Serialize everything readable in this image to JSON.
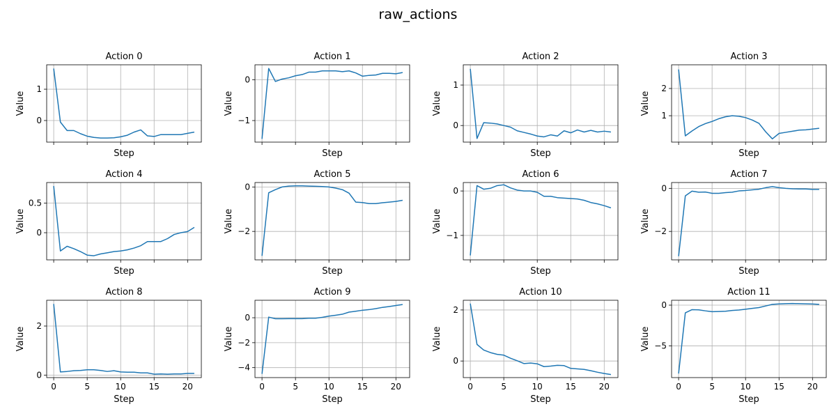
{
  "figure_title": "raw_actions",
  "chart_data": [
    {
      "type": "line",
      "title": "Action 0",
      "xlabel": "Step",
      "ylabel": "Value",
      "xlim": [
        -1.05,
        22.05
      ],
      "ylim": [
        -0.69,
        1.78
      ],
      "xticks": [
        0,
        5,
        10,
        15,
        20
      ],
      "yticks": [
        0,
        1
      ],
      "grid": true,
      "x": [
        0,
        1,
        2,
        3,
        4,
        5,
        6,
        7,
        8,
        9,
        10,
        11,
        12,
        13,
        14,
        15,
        16,
        17,
        18,
        19,
        20,
        21
      ],
      "values": [
        1.66,
        -0.05,
        -0.32,
        -0.32,
        -0.42,
        -0.5,
        -0.54,
        -0.56,
        -0.56,
        -0.55,
        -0.52,
        -0.47,
        -0.37,
        -0.3,
        -0.49,
        -0.51,
        -0.45,
        -0.45,
        -0.45,
        -0.45,
        -0.41,
        -0.37
      ]
    },
    {
      "type": "line",
      "title": "Action 1",
      "xlabel": "Step",
      "ylabel": "Value",
      "xlim": [
        -1.05,
        22.05
      ],
      "ylim": [
        -1.53,
        0.37
      ],
      "xticks": [
        0,
        5,
        10,
        15,
        20
      ],
      "yticks": [
        -1,
        0
      ],
      "grid": true,
      "x": [
        0,
        1,
        2,
        3,
        4,
        5,
        6,
        7,
        8,
        9,
        10,
        11,
        12,
        13,
        14,
        15,
        16,
        17,
        18,
        19,
        20,
        21
      ],
      "values": [
        -1.45,
        0.28,
        -0.04,
        0.02,
        0.05,
        0.1,
        0.13,
        0.19,
        0.19,
        0.22,
        0.22,
        0.22,
        0.2,
        0.22,
        0.17,
        0.09,
        0.11,
        0.12,
        0.16,
        0.16,
        0.15,
        0.18
      ]
    },
    {
      "type": "line",
      "title": "Action 2",
      "xlabel": "Step",
      "ylabel": "Value",
      "xlim": [
        -1.05,
        22.05
      ],
      "ylim": [
        -0.41,
        1.5
      ],
      "xticks": [
        0,
        5,
        10,
        15,
        20
      ],
      "yticks": [
        0,
        1
      ],
      "grid": true,
      "x": [
        0,
        1,
        2,
        3,
        4,
        5,
        6,
        7,
        8,
        9,
        10,
        11,
        12,
        13,
        14,
        15,
        16,
        17,
        18,
        19,
        20,
        21
      ],
      "values": [
        1.4,
        -0.32,
        0.07,
        0.06,
        0.04,
        0.0,
        -0.04,
        -0.13,
        -0.17,
        -0.21,
        -0.26,
        -0.28,
        -0.23,
        -0.26,
        -0.13,
        -0.18,
        -0.11,
        -0.16,
        -0.12,
        -0.16,
        -0.14,
        -0.16
      ]
    },
    {
      "type": "line",
      "title": "Action 3",
      "xlabel": "Step",
      "ylabel": "Value",
      "xlim": [
        -1.05,
        22.05
      ],
      "ylim": [
        0.03,
        2.87
      ],
      "xticks": [
        0,
        5,
        10,
        15,
        20
      ],
      "yticks": [
        1,
        2
      ],
      "grid": true,
      "x": [
        0,
        1,
        2,
        3,
        4,
        5,
        6,
        7,
        8,
        9,
        10,
        11,
        12,
        13,
        14,
        15,
        16,
        17,
        18,
        19,
        20,
        21
      ],
      "values": [
        2.7,
        0.26,
        0.44,
        0.6,
        0.71,
        0.79,
        0.89,
        0.96,
        1.0,
        0.98,
        0.93,
        0.84,
        0.72,
        0.41,
        0.15,
        0.35,
        0.39,
        0.43,
        0.47,
        0.48,
        0.51,
        0.54
      ]
    },
    {
      "type": "line",
      "title": "Action 4",
      "xlabel": "Step",
      "ylabel": "Value",
      "xlim": [
        -1.05,
        22.05
      ],
      "ylim": [
        -0.46,
        0.85
      ],
      "xticks": [
        0,
        5,
        10,
        15,
        20
      ],
      "yticks": [
        0,
        0.5
      ],
      "grid": true,
      "x": [
        0,
        1,
        2,
        3,
        4,
        5,
        6,
        7,
        8,
        9,
        10,
        11,
        12,
        13,
        14,
        15,
        16,
        17,
        18,
        19,
        20,
        21
      ],
      "values": [
        0.79,
        -0.31,
        -0.23,
        -0.27,
        -0.32,
        -0.38,
        -0.39,
        -0.36,
        -0.34,
        -0.32,
        -0.31,
        -0.29,
        -0.26,
        -0.22,
        -0.15,
        -0.15,
        -0.15,
        -0.1,
        -0.03,
        0.0,
        0.02,
        0.09
      ]
    },
    {
      "type": "line",
      "title": "Action 5",
      "xlabel": "Step",
      "ylabel": "Value",
      "xlim": [
        -1.05,
        22.05
      ],
      "ylim": [
        -3.28,
        0.2
      ],
      "xticks": [
        0,
        5,
        10,
        15,
        20
      ],
      "yticks": [
        -2,
        0
      ],
      "grid": true,
      "x": [
        0,
        1,
        2,
        3,
        4,
        5,
        6,
        7,
        8,
        9,
        10,
        11,
        12,
        13,
        14,
        15,
        16,
        17,
        18,
        19,
        20,
        21
      ],
      "values": [
        -3.1,
        -0.26,
        -0.12,
        0.0,
        0.04,
        0.05,
        0.05,
        0.04,
        0.03,
        0.02,
        0.0,
        -0.05,
        -0.12,
        -0.28,
        -0.68,
        -0.7,
        -0.75,
        -0.75,
        -0.71,
        -0.68,
        -0.65,
        -0.6
      ]
    },
    {
      "type": "line",
      "title": "Action 6",
      "xlabel": "Step",
      "ylabel": "Value",
      "xlim": [
        -1.05,
        22.05
      ],
      "ylim": [
        -1.55,
        0.19
      ],
      "xticks": [
        0,
        5,
        10,
        15,
        20
      ],
      "yticks": [
        -1,
        0
      ],
      "grid": true,
      "x": [
        0,
        1,
        2,
        3,
        4,
        5,
        6,
        7,
        8,
        9,
        10,
        11,
        12,
        13,
        14,
        15,
        16,
        17,
        18,
        19,
        20,
        21
      ],
      "values": [
        -1.45,
        0.12,
        0.04,
        0.06,
        0.12,
        0.14,
        0.07,
        0.02,
        0.0,
        0.0,
        -0.03,
        -0.12,
        -0.12,
        -0.15,
        -0.16,
        -0.17,
        -0.18,
        -0.21,
        -0.26,
        -0.29,
        -0.33,
        -0.38
      ]
    },
    {
      "type": "line",
      "title": "Action 7",
      "xlabel": "Step",
      "ylabel": "Value",
      "xlim": [
        -1.05,
        22.05
      ],
      "ylim": [
        -3.32,
        0.27
      ],
      "xticks": [
        0,
        5,
        10,
        15,
        20
      ],
      "yticks": [
        -2,
        0
      ],
      "grid": true,
      "x": [
        0,
        1,
        2,
        3,
        4,
        5,
        6,
        7,
        8,
        9,
        10,
        11,
        12,
        13,
        14,
        15,
        16,
        17,
        18,
        19,
        20,
        21
      ],
      "values": [
        -3.15,
        -0.35,
        -0.13,
        -0.18,
        -0.17,
        -0.23,
        -0.23,
        -0.2,
        -0.18,
        -0.12,
        -0.1,
        -0.07,
        -0.04,
        0.03,
        0.08,
        0.03,
        0.0,
        -0.02,
        -0.03,
        -0.03,
        -0.05,
        -0.05
      ]
    },
    {
      "type": "line",
      "title": "Action 8",
      "xlabel": "Step",
      "ylabel": "Value",
      "xlim": [
        -1.05,
        22.05
      ],
      "ylim": [
        -0.1,
        3.05
      ],
      "xticks": [
        0,
        5,
        10,
        15,
        20
      ],
      "yticks": [
        0,
        2
      ],
      "grid": true,
      "x": [
        0,
        1,
        2,
        3,
        4,
        5,
        6,
        7,
        8,
        9,
        10,
        11,
        12,
        13,
        14,
        15,
        16,
        17,
        18,
        19,
        20,
        21
      ],
      "values": [
        2.9,
        0.13,
        0.15,
        0.18,
        0.19,
        0.22,
        0.22,
        0.19,
        0.15,
        0.18,
        0.13,
        0.12,
        0.12,
        0.09,
        0.09,
        0.04,
        0.05,
        0.04,
        0.05,
        0.05,
        0.07,
        0.07
      ]
    },
    {
      "type": "line",
      "title": "Action 9",
      "xlabel": "Step",
      "ylabel": "Value",
      "xlim": [
        -1.05,
        22.05
      ],
      "ylim": [
        -4.8,
        1.4
      ],
      "xticks": [
        0,
        5,
        10,
        15,
        20
      ],
      "yticks": [
        -4,
        -2,
        0
      ],
      "grid": true,
      "x": [
        0,
        1,
        2,
        3,
        4,
        5,
        6,
        7,
        8,
        9,
        10,
        11,
        12,
        13,
        14,
        15,
        16,
        17,
        18,
        19,
        20,
        21
      ],
      "values": [
        -4.5,
        0.05,
        -0.08,
        -0.08,
        -0.07,
        -0.07,
        -0.07,
        -0.04,
        -0.04,
        0.03,
        0.13,
        0.2,
        0.28,
        0.45,
        0.52,
        0.6,
        0.65,
        0.73,
        0.83,
        0.9,
        0.98,
        1.06
      ]
    },
    {
      "type": "line",
      "title": "Action 10",
      "xlabel": "Step",
      "ylabel": "Value",
      "xlim": [
        -1.05,
        22.05
      ],
      "ylim": [
        -0.65,
        2.38
      ],
      "xticks": [
        0,
        5,
        10,
        15,
        20
      ],
      "yticks": [
        0,
        2
      ],
      "grid": true,
      "x": [
        0,
        1,
        2,
        3,
        4,
        5,
        6,
        7,
        8,
        9,
        10,
        11,
        12,
        13,
        14,
        15,
        16,
        17,
        18,
        19,
        20,
        21
      ],
      "values": [
        2.25,
        0.65,
        0.43,
        0.33,
        0.26,
        0.23,
        0.11,
        0.01,
        -0.1,
        -0.08,
        -0.11,
        -0.22,
        -0.2,
        -0.17,
        -0.18,
        -0.29,
        -0.31,
        -0.33,
        -0.38,
        -0.44,
        -0.49,
        -0.53
      ]
    },
    {
      "type": "line",
      "title": "Action 11",
      "xlabel": "Step",
      "ylabel": "Value",
      "xlim": [
        -1.05,
        22.05
      ],
      "ylim": [
        -8.9,
        0.6
      ],
      "xticks": [
        0,
        5,
        10,
        15,
        20
      ],
      "yticks": [
        -5,
        0
      ],
      "grid": true,
      "x": [
        0,
        1,
        2,
        3,
        4,
        5,
        6,
        7,
        8,
        9,
        10,
        11,
        12,
        13,
        14,
        15,
        16,
        17,
        18,
        19,
        20,
        21
      ],
      "values": [
        -8.4,
        -0.95,
        -0.55,
        -0.58,
        -0.7,
        -0.8,
        -0.78,
        -0.75,
        -0.65,
        -0.6,
        -0.5,
        -0.4,
        -0.3,
        -0.1,
        0.1,
        0.15,
        0.18,
        0.2,
        0.18,
        0.16,
        0.14,
        0.1
      ]
    }
  ]
}
